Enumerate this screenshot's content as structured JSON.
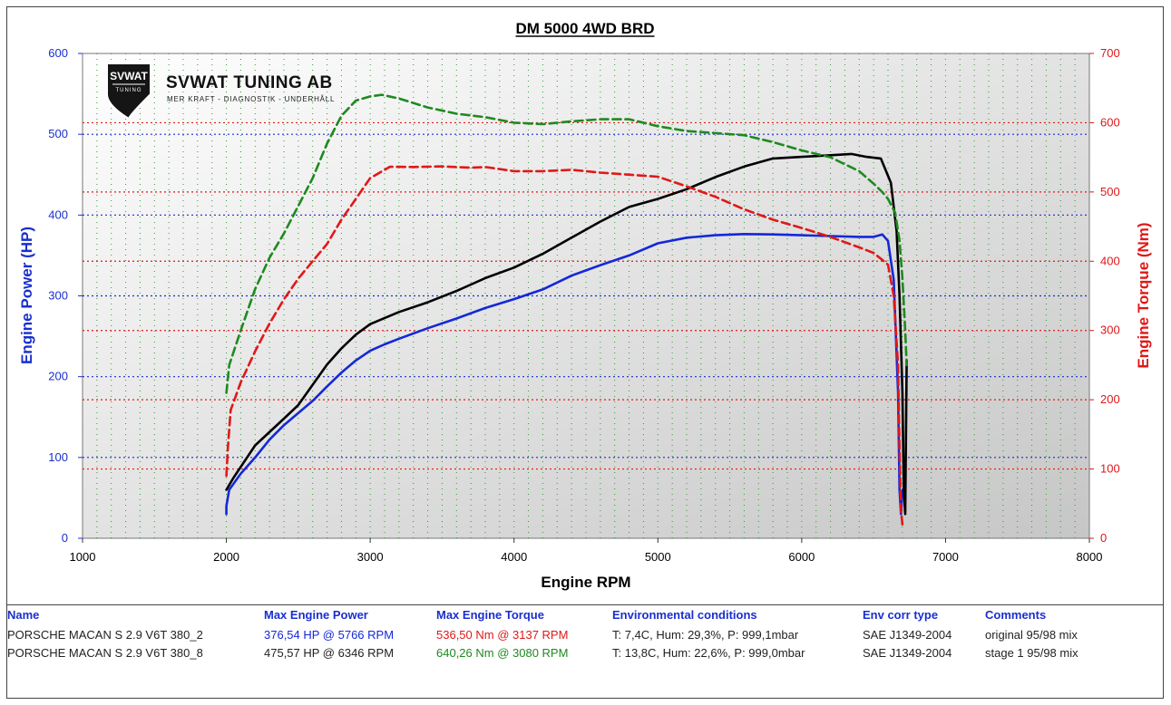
{
  "chart_data": {
    "type": "line",
    "title": "DM 5000 4WD BRD",
    "xlabel": "Engine RPM",
    "ylabel_left": "Engine Power (HP)",
    "ylabel_right": "Engine Torque (Nm)",
    "xlim": [
      1000,
      8000
    ],
    "ylim_left": [
      0,
      600
    ],
    "ylim_right": [
      0,
      700
    ],
    "x_ticks": [
      1000,
      2000,
      3000,
      4000,
      5000,
      6000,
      7000,
      8000
    ],
    "y_left_ticks": [
      0,
      100,
      200,
      300,
      400,
      500,
      600
    ],
    "y_right_ticks": [
      0,
      100,
      200,
      300,
      400,
      500,
      600,
      700
    ],
    "grid": true,
    "colors": {
      "power_original": "#1428d8",
      "power_stage1": "#000000",
      "torque_original": "#e01818",
      "torque_stage1": "#1e8a1e",
      "left_axis": "#1a2fd0",
      "right_axis": "#e01818",
      "plot_bg_top": "#ffffff",
      "plot_bg_bottom": "#c8c8c8"
    },
    "series": [
      {
        "axis": "left",
        "dash": "solid",
        "color_key": "power_original",
        "points": [
          [
            2000,
            30
          ],
          [
            2000,
            40
          ],
          [
            2020,
            60
          ],
          [
            2100,
            80
          ],
          [
            2200,
            100
          ],
          [
            2300,
            122
          ],
          [
            2400,
            140
          ],
          [
            2500,
            155
          ],
          [
            2600,
            170
          ],
          [
            2700,
            188
          ],
          [
            2800,
            205
          ],
          [
            2900,
            220
          ],
          [
            3000,
            232
          ],
          [
            3100,
            240
          ],
          [
            3200,
            247
          ],
          [
            3400,
            260
          ],
          [
            3600,
            272
          ],
          [
            3800,
            285
          ],
          [
            4000,
            296
          ],
          [
            4200,
            308
          ],
          [
            4400,
            325
          ],
          [
            4600,
            338
          ],
          [
            4800,
            350
          ],
          [
            5000,
            365
          ],
          [
            5200,
            372
          ],
          [
            5400,
            375
          ],
          [
            5600,
            376.5
          ],
          [
            5800,
            376
          ],
          [
            6000,
            375
          ],
          [
            6200,
            374
          ],
          [
            6400,
            373
          ],
          [
            6500,
            373
          ],
          [
            6560,
            376
          ],
          [
            6600,
            368
          ],
          [
            6640,
            320
          ],
          [
            6670,
            180
          ],
          [
            6680,
            60
          ],
          [
            6690,
            30
          ],
          [
            6700,
            60
          ]
        ]
      },
      {
        "axis": "left",
        "dash": "solid",
        "color_key": "power_stage1",
        "points": [
          [
            2000,
            60
          ],
          [
            2050,
            75
          ],
          [
            2200,
            115
          ],
          [
            2400,
            148
          ],
          [
            2500,
            165
          ],
          [
            2600,
            190
          ],
          [
            2700,
            215
          ],
          [
            2800,
            235
          ],
          [
            2900,
            252
          ],
          [
            3000,
            265
          ],
          [
            3200,
            280
          ],
          [
            3400,
            292
          ],
          [
            3600,
            306
          ],
          [
            3800,
            322
          ],
          [
            4000,
            335
          ],
          [
            4200,
            352
          ],
          [
            4400,
            372
          ],
          [
            4600,
            392
          ],
          [
            4800,
            410
          ],
          [
            5000,
            420
          ],
          [
            5200,
            432
          ],
          [
            5400,
            447
          ],
          [
            5600,
            460
          ],
          [
            5800,
            470
          ],
          [
            6000,
            472
          ],
          [
            6200,
            474
          ],
          [
            6346,
            475.6
          ],
          [
            6450,
            472
          ],
          [
            6550,
            470
          ],
          [
            6620,
            440
          ],
          [
            6660,
            380
          ],
          [
            6680,
            300
          ],
          [
            6700,
            180
          ],
          [
            6710,
            60
          ],
          [
            6720,
            30
          ],
          [
            6730,
            220
          ]
        ]
      },
      {
        "axis": "right",
        "dash": "dashed",
        "color_key": "torque_original",
        "points": [
          [
            2000,
            90
          ],
          [
            2010,
            130
          ],
          [
            2030,
            185
          ],
          [
            2100,
            225
          ],
          [
            2200,
            270
          ],
          [
            2300,
            310
          ],
          [
            2400,
            345
          ],
          [
            2500,
            375
          ],
          [
            2600,
            400
          ],
          [
            2700,
            425
          ],
          [
            2800,
            460
          ],
          [
            2900,
            490
          ],
          [
            3000,
            520
          ],
          [
            3137,
            536.5
          ],
          [
            3300,
            536
          ],
          [
            3500,
            537
          ],
          [
            3700,
            535
          ],
          [
            3800,
            536
          ],
          [
            4000,
            530
          ],
          [
            4200,
            530
          ],
          [
            4400,
            532
          ],
          [
            4600,
            528
          ],
          [
            4800,
            525
          ],
          [
            5000,
            522
          ],
          [
            5200,
            508
          ],
          [
            5400,
            493
          ],
          [
            5600,
            475
          ],
          [
            5800,
            460
          ],
          [
            6000,
            448
          ],
          [
            6200,
            435
          ],
          [
            6400,
            420
          ],
          [
            6500,
            412
          ],
          [
            6560,
            402
          ],
          [
            6600,
            395
          ],
          [
            6640,
            350
          ],
          [
            6670,
            250
          ],
          [
            6680,
            130
          ],
          [
            6690,
            40
          ],
          [
            6700,
            20
          ]
        ]
      },
      {
        "axis": "right",
        "dash": "dashed",
        "color_key": "torque_stage1",
        "points": [
          [
            2000,
            210
          ],
          [
            2020,
            250
          ],
          [
            2100,
            300
          ],
          [
            2200,
            360
          ],
          [
            2300,
            405
          ],
          [
            2400,
            440
          ],
          [
            2500,
            480
          ],
          [
            2600,
            520
          ],
          [
            2700,
            570
          ],
          [
            2800,
            610
          ],
          [
            2900,
            632
          ],
          [
            3000,
            638
          ],
          [
            3080,
            640.3
          ],
          [
            3200,
            635
          ],
          [
            3400,
            622
          ],
          [
            3600,
            613
          ],
          [
            3800,
            608
          ],
          [
            4000,
            600
          ],
          [
            4200,
            598
          ],
          [
            4400,
            602
          ],
          [
            4600,
            605
          ],
          [
            4800,
            605
          ],
          [
            5000,
            595
          ],
          [
            5200,
            588
          ],
          [
            5400,
            585
          ],
          [
            5600,
            582
          ],
          [
            5800,
            572
          ],
          [
            6000,
            560
          ],
          [
            6200,
            550
          ],
          [
            6400,
            530
          ],
          [
            6500,
            512
          ],
          [
            6560,
            500
          ],
          [
            6600,
            490
          ],
          [
            6650,
            470
          ],
          [
            6680,
            430
          ],
          [
            6700,
            375
          ],
          [
            6720,
            300
          ],
          [
            6730,
            250
          ]
        ]
      }
    ]
  },
  "logo": {
    "badge": "SVWAT",
    "badge_sub": "TUNING",
    "name": "SVWAT TUNING AB",
    "tagline": "MER KRAFT - DIAGNOSTIK - UNDERHÅLL"
  },
  "summary": {
    "headers": {
      "name": "Name",
      "power": "Max Engine Power",
      "torque": "Max Engine Torque",
      "env": "Environmental conditions",
      "corr": "Env corr type",
      "comments": "Comments"
    },
    "rows": [
      {
        "name": "PORSCHE MACAN S 2.9 V6T 380_2",
        "power": "376,54 HP @ 5766 RPM",
        "torque": "536,50 Nm @ 3137 RPM",
        "env": "T: 7,4C, Hum: 29,3%, P: 999,1mbar",
        "corr": "SAE J1349-2004",
        "comments": "original 95/98 mix",
        "power_color": "#1428d8",
        "torque_color": "#e01818"
      },
      {
        "name": "PORSCHE MACAN S 2.9 V6T 380_8",
        "power": "475,57 HP @ 6346 RPM",
        "torque": "640,26 Nm @ 3080 RPM",
        "env": "T: 13,8C, Hum: 22,6%, P: 999,0mbar",
        "corr": "SAE J1349-2004",
        "comments": "stage 1 95/98 mix",
        "power_color": "#222222",
        "torque_color": "#1e8a1e"
      }
    ]
  }
}
